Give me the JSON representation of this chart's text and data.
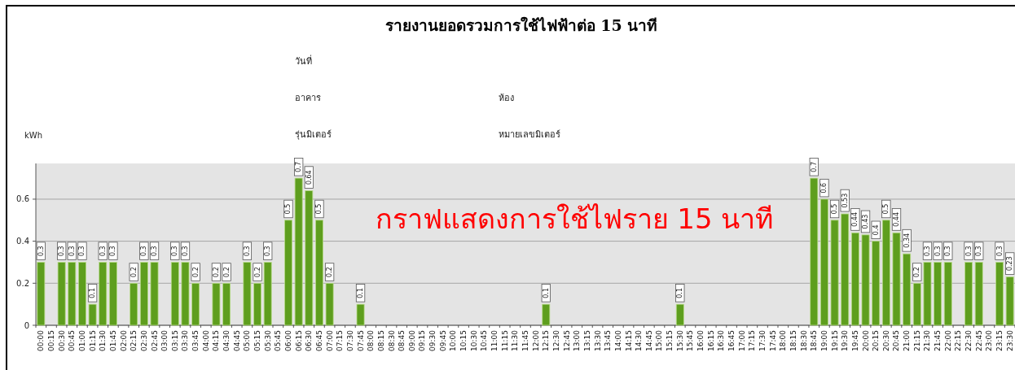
{
  "chart_data": {
    "type": "bar",
    "title": "รายงานยอดรวมการใช้ไฟฟ้าต่อ 15 นาที",
    "ylabel": "kWh",
    "annotations": [
      "วันที่",
      "อาคาร",
      "รุ่นมิเตอร์",
      "ห้อง",
      "หมายเลขมิเตอร์",
      "กราฟแสดงการใช้ไฟราย 15 นาที"
    ],
    "categories": [
      "00:00",
      "00:15",
      "00:30",
      "00:45",
      "01:00",
      "01:15",
      "01:30",
      "01:45",
      "02:00",
      "02:15",
      "02:30",
      "02:45",
      "03:00",
      "03:15",
      "03:30",
      "03:45",
      "04:00",
      "04:15",
      "04:30",
      "04:45",
      "05:00",
      "05:15",
      "05:30",
      "05:45",
      "06:00",
      "06:15",
      "06:30",
      "06:45",
      "07:00",
      "07:15",
      "07:30",
      "07:45",
      "08:00",
      "08:15",
      "08:30",
      "08:45",
      "09:00",
      "09:15",
      "09:30",
      "09:45",
      "10:00",
      "10:15",
      "10:30",
      "10:45",
      "11:00",
      "11:15",
      "11:30",
      "11:45",
      "12:00",
      "12:15",
      "12:30",
      "12:45",
      "13:00",
      "13:15",
      "13:30",
      "13:45",
      "14:00",
      "14:15",
      "14:30",
      "14:45",
      "15:00",
      "15:15",
      "15:30",
      "15:45",
      "16:00",
      "16:15",
      "16:30",
      "16:45",
      "17:00",
      "17:15",
      "17:30",
      "17:45",
      "18:00",
      "18:15",
      "18:30",
      "18:45",
      "19:00",
      "19:15",
      "19:30",
      "19:45",
      "20:00",
      "20:15",
      "20:30",
      "20:45",
      "21:00",
      "21:15",
      "21:30",
      "21:45",
      "22:00",
      "22:15",
      "22:30",
      "22:45",
      "23:00",
      "23:15",
      "23:30"
    ],
    "values": [
      0.3,
      null,
      0.3,
      0.3,
      0.3,
      0.1,
      0.3,
      0.3,
      null,
      0.2,
      0.3,
      0.3,
      null,
      0.3,
      0.3,
      0.2,
      null,
      0.2,
      0.2,
      null,
      0.3,
      0.2,
      0.3,
      null,
      0.5,
      0.7,
      0.64,
      0.5,
      0.2,
      null,
      null,
      0.1,
      null,
      null,
      null,
      null,
      null,
      null,
      null,
      null,
      null,
      null,
      null,
      null,
      null,
      null,
      null,
      null,
      null,
      0.1,
      null,
      null,
      null,
      null,
      null,
      null,
      null,
      null,
      null,
      null,
      null,
      null,
      0.1,
      null,
      null,
      null,
      null,
      null,
      null,
      null,
      null,
      null,
      null,
      null,
      null,
      0.7,
      0.6,
      0.5,
      0.53,
      0.44,
      0.43,
      0.4,
      0.5,
      0.44,
      0.34,
      0.2,
      0.3,
      0.3,
      0.3,
      null,
      0.3,
      0.3,
      null,
      0.3,
      0.23
    ],
    "value_labels": [
      "0.3",
      null,
      "0.3",
      "0.3",
      "0.3",
      "0.1",
      "0.3",
      "0.3",
      null,
      "0.2",
      "0.3",
      "0.3",
      null,
      "0.3",
      "0.3",
      "0.2",
      null,
      "0.2",
      "0.2",
      null,
      "0.3",
      "0.2",
      "0.3",
      null,
      "0.5",
      "0.7",
      "0.64",
      "0.5",
      "0.2",
      null,
      null,
      "0.1",
      null,
      null,
      null,
      null,
      null,
      null,
      null,
      null,
      null,
      null,
      null,
      null,
      null,
      null,
      null,
      null,
      null,
      "0.1",
      null,
      null,
      null,
      null,
      null,
      null,
      null,
      null,
      null,
      null,
      null,
      null,
      "0.1",
      null,
      null,
      null,
      null,
      null,
      null,
      null,
      null,
      null,
      null,
      null,
      null,
      "0.7",
      "0.6",
      "0.5",
      "0.53",
      "0.44",
      "0.43",
      "0.4",
      "0.5",
      "0.44",
      "0.34",
      "0.2",
      "0.3",
      "0.3",
      "0.3",
      null,
      "0.3",
      "0.3",
      null,
      "0.3",
      "0.23"
    ],
    "color": "#5e9e1e",
    "ylim": [
      0,
      0.77
    ],
    "yticks": [
      0,
      0.2,
      0.4,
      0.6
    ],
    "grid": "y"
  }
}
